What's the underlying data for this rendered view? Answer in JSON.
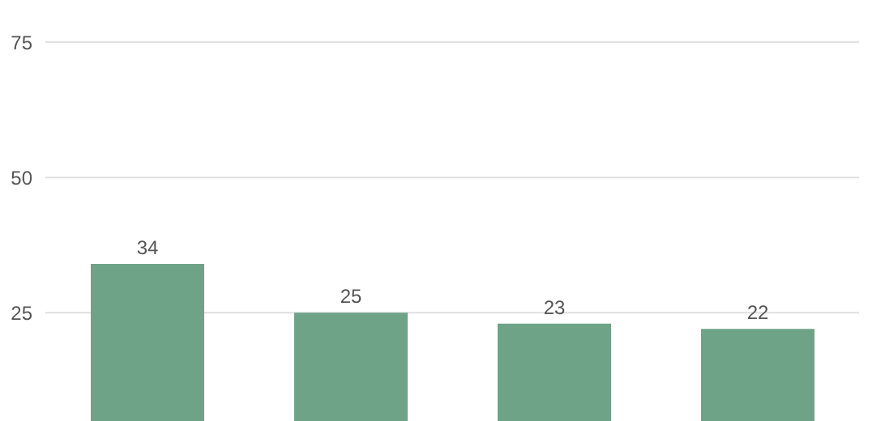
{
  "chart_data": {
    "type": "bar",
    "categories": [
      null,
      null,
      null,
      null
    ],
    "values": [
      34,
      25,
      23,
      22
    ],
    "color": "#6ea387",
    "ylim": [
      5,
      75
    ],
    "yticks": [
      25,
      50,
      75
    ],
    "grid": "y",
    "data_labels": true
  }
}
